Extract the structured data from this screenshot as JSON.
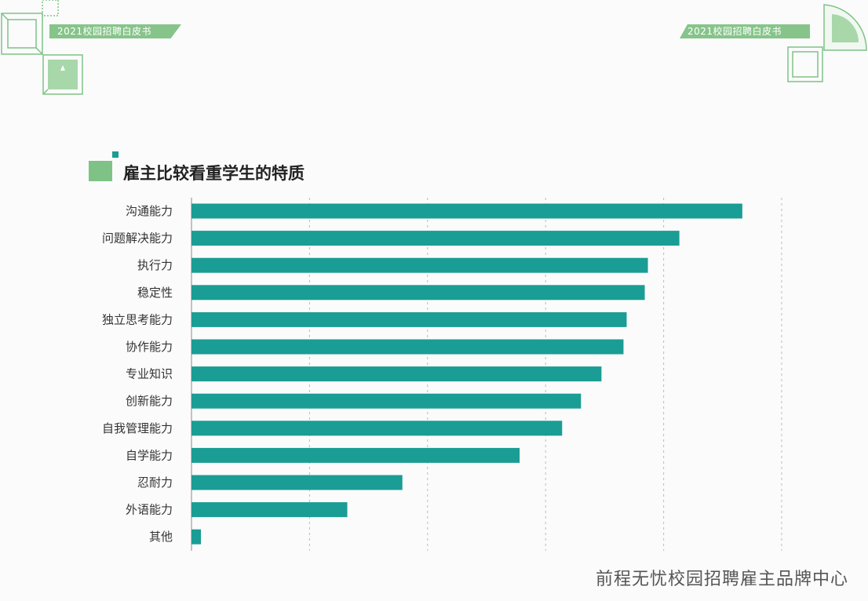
{
  "header": {
    "badge_left": "2021校园招聘白皮书",
    "badge_right": "2021校园招聘白皮书"
  },
  "section_title": "雇主比较看重学生的特质",
  "footer": "前程无忧校园招聘雇主品牌中心",
  "colors": {
    "bar": "#1a9d94",
    "accent_green": "#7ec385",
    "badge": "#86c48a",
    "grid": "#bbbbbb"
  },
  "chart_data": {
    "type": "bar",
    "orientation": "horizontal",
    "title": "雇主比较看重学生的特质",
    "categories": [
      "沟通能力",
      "问题解决能力",
      "执行力",
      "稳定性",
      "独立思考能力",
      "协作能力",
      "专业知识",
      "创新能力",
      "自我管理能力",
      "自学能力",
      "忍耐力",
      "外语能力",
      "其他"
    ],
    "values": [
      70,
      62,
      58,
      57.6,
      55.3,
      54.9,
      52.1,
      49.5,
      47.1,
      41.7,
      26.8,
      19.8,
      1.2
    ],
    "xlim": [
      0,
      75
    ],
    "grid": "vertical dashed",
    "xlabel": "",
    "ylabel": ""
  }
}
